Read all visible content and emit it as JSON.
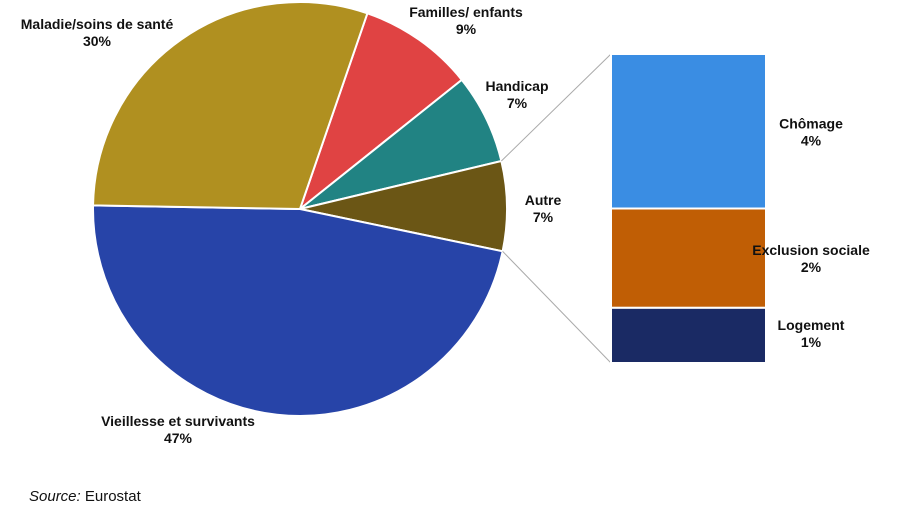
{
  "chart_data": {
    "type": "pie",
    "pie": {
      "slices": [
        {
          "name": "Familles/ enfants",
          "value": 9,
          "label": "9%",
          "color": "#E04343"
        },
        {
          "name": "Handicap",
          "value": 7,
          "label": "7%",
          "color": "#218383"
        },
        {
          "name": "Autre",
          "value": 7,
          "label": "7%",
          "color": "#6B5615"
        },
        {
          "name": "Vieillesse et survivants",
          "value": 47,
          "label": "47%",
          "color": "#2744A8"
        },
        {
          "name": "Maladie/soins de santé",
          "value": 30,
          "label": "30%",
          "color": "#B09020"
        }
      ],
      "start_angle_deg": 19
    },
    "breakdown": {
      "of": "Autre",
      "type": "stacked-bar",
      "segments": [
        {
          "name": "Chômage",
          "value": 3.5,
          "label": "4%",
          "color": "#3A8DE3"
        },
        {
          "name": "Exclusion sociale",
          "value": 2.25,
          "label": "2%",
          "color": "#C05E05"
        },
        {
          "name": "Logement",
          "value": 1.25,
          "label": "1%",
          "color": "#1A2A64"
        }
      ]
    }
  },
  "source": {
    "label": "Source:",
    "value": "Eurostat"
  }
}
